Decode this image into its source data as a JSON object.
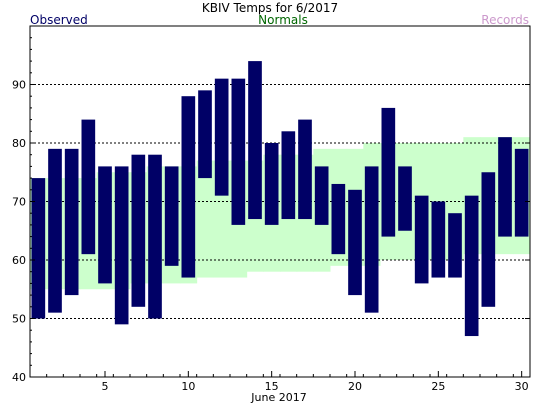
{
  "chart_data": {
    "type": "bar",
    "title": "KBIV Temps for 6/2017",
    "legend": {
      "observed": "Observed",
      "normals": "Normals",
      "records": "Records"
    },
    "xlabel": "June 2017",
    "ylabel": "",
    "xlim": [
      1,
      30
    ],
    "ylim": [
      40,
      100
    ],
    "x_ticks": [
      5,
      10,
      15,
      20,
      25,
      30
    ],
    "y_ticks": [
      40,
      50,
      60,
      70,
      80,
      90
    ],
    "grid_lines": [
      50,
      60,
      70,
      80,
      90
    ],
    "grid": true,
    "colors": {
      "observed": "#000066",
      "normals_fill": "#ccffcc",
      "normals_text": "#006600",
      "records_text": "#cc99cc",
      "observed_text": "#000066"
    },
    "days": [
      1,
      2,
      3,
      4,
      5,
      6,
      7,
      8,
      9,
      10,
      11,
      12,
      13,
      14,
      15,
      16,
      17,
      18,
      19,
      20,
      21,
      22,
      23,
      24,
      25,
      26,
      27,
      28,
      29,
      30
    ],
    "series": [
      {
        "name": "Observed",
        "high": [
          74,
          79,
          79,
          84,
          76,
          76,
          78,
          78,
          76,
          88,
          89,
          91,
          91,
          94,
          80,
          82,
          84,
          76,
          73,
          72,
          76,
          86,
          76,
          71,
          70,
          68,
          71,
          75,
          81,
          79
        ],
        "low": [
          50,
          51,
          54,
          61,
          56,
          49,
          52,
          50,
          59,
          57,
          74,
          71,
          66,
          67,
          66,
          67,
          67,
          66,
          61,
          54,
          51,
          64,
          65,
          56,
          57,
          57,
          47,
          52,
          64,
          64
        ]
      },
      {
        "name": "Normals",
        "high": [
          74,
          74,
          74,
          74,
          75,
          75,
          75,
          76,
          76,
          76,
          77,
          77,
          77,
          77,
          78,
          78,
          78,
          79,
          79,
          79,
          80,
          80,
          80,
          80,
          80,
          80,
          81,
          81,
          81,
          81
        ],
        "low": [
          55,
          55,
          55,
          55,
          55,
          55,
          56,
          56,
          56,
          56,
          57,
          57,
          57,
          58,
          58,
          58,
          58,
          58,
          59,
          59,
          59,
          60,
          60,
          60,
          60,
          60,
          61,
          61,
          61,
          61
        ]
      }
    ]
  }
}
